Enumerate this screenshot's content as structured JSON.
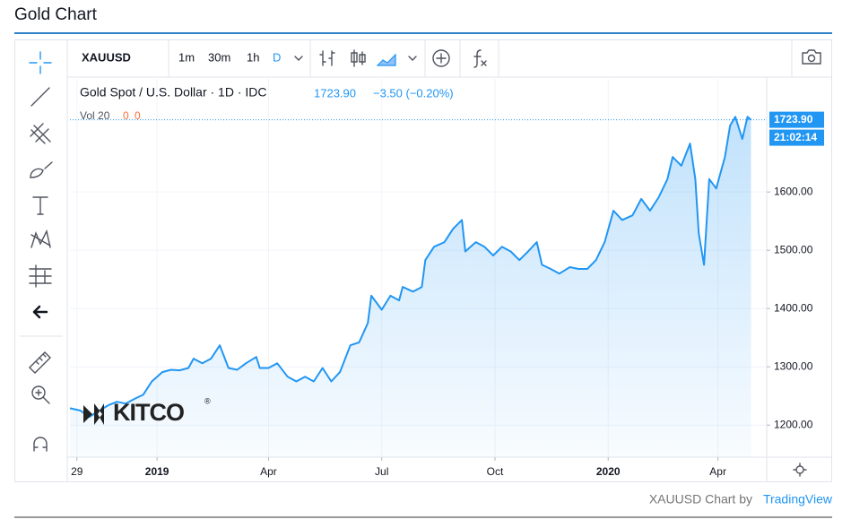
{
  "page_title": "Gold Chart",
  "toolbar": {
    "symbol": "XAUUSD",
    "intervals": [
      "1m",
      "30m",
      "1h",
      "D"
    ]
  },
  "legend": {
    "title": "Gold Spot / U.S. Dollar · 1D · IDC",
    "last": "1723.90",
    "change": "−3.50 (−0.20%)",
    "volume_label": "Vol 20",
    "volume_values": [
      "0",
      "0"
    ]
  },
  "price_scale": {
    "countdown": "21:02:14"
  },
  "watermark": {
    "text": "KITCO",
    "mark": "®"
  },
  "footer": {
    "text": "XAUUSD Chart by",
    "link": "TradingView"
  },
  "chart_data": {
    "type": "area",
    "color": "#2196f3",
    "grid": true,
    "x": [
      -50,
      -44,
      -39,
      -33,
      -28,
      -23,
      -18,
      -13,
      -8,
      -3,
      3,
      8,
      13,
      18,
      21,
      26,
      31,
      36,
      41,
      46,
      51,
      57,
      59,
      64,
      69,
      75,
      80,
      85,
      90,
      95,
      100,
      105,
      111,
      116,
      121,
      123,
      129,
      134,
      139,
      141,
      147,
      152,
      154,
      159,
      165,
      170,
      175,
      177,
      183,
      188,
      193,
      198,
      203,
      208,
      213,
      218,
      221,
      226,
      231,
      237,
      242,
      247,
      252,
      257,
      262,
      267,
      273,
      278,
      283,
      288,
      293,
      296,
      301,
      306,
      309,
      311,
      314,
      317,
      321,
      326,
      329,
      332,
      336,
      339,
      341
    ],
    "values": [
      1229,
      1225,
      1214,
      1225,
      1234,
      1240,
      1237,
      1245,
      1252,
      1275,
      1291,
      1295,
      1294,
      1298,
      1314,
      1306,
      1314,
      1337,
      1298,
      1295,
      1306,
      1317,
      1298,
      1298,
      1306,
      1283,
      1275,
      1283,
      1275,
      1298,
      1275,
      1291,
      1337,
      1342,
      1375,
      1422,
      1398,
      1422,
      1414,
      1437,
      1429,
      1437,
      1483,
      1506,
      1514,
      1537,
      1552,
      1498,
      1514,
      1506,
      1491,
      1506,
      1498,
      1483,
      1498,
      1514,
      1475,
      1468,
      1460,
      1471,
      1468,
      1468,
      1483,
      1514,
      1568,
      1552,
      1560,
      1588,
      1568,
      1591,
      1622,
      1660,
      1645,
      1683,
      1622,
      1529,
      1475,
      1622,
      1606,
      1660,
      1714,
      1729,
      1691,
      1729,
      1723.9
    ],
    "xlim": [
      -50,
      350
    ],
    "ylim": [
      1145,
      1794
    ],
    "xticks": [
      {
        "value": -46,
        "label": "29"
      },
      {
        "value": 0,
        "label": "2019"
      },
      {
        "value": 64,
        "label": "Apr"
      },
      {
        "value": 129,
        "label": "Jul"
      },
      {
        "value": 194,
        "label": "Oct"
      },
      {
        "value": 259,
        "label": "2020"
      },
      {
        "value": 322,
        "label": "Apr"
      }
    ],
    "yticks": [
      {
        "value": 1200,
        "label": "1200.00"
      },
      {
        "value": 1300,
        "label": "1300.00"
      },
      {
        "value": 1400,
        "label": "1400.00"
      },
      {
        "value": 1500,
        "label": "1500.00"
      },
      {
        "value": 1600,
        "label": "1600.00"
      }
    ]
  }
}
